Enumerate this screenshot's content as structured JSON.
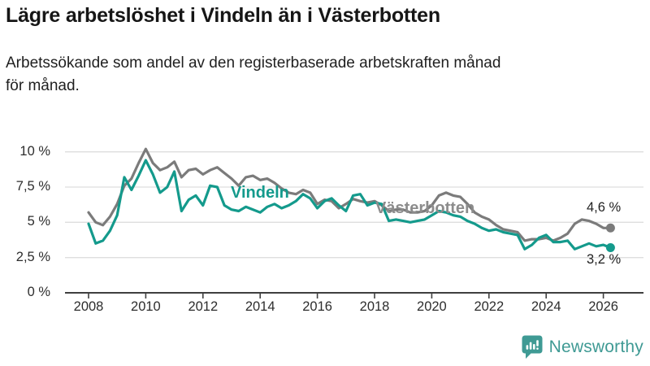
{
  "header": {
    "title": "Lägre arbetslöshet i Vindeln än i Västerbotten",
    "subtitle_line1": "Arbetssökande som andel av den registerbaserade arbetskraften månad",
    "subtitle_line2": "för månad."
  },
  "footer": {
    "brand": "Newsworthy",
    "brand_color": "#3f9a94"
  },
  "colors": {
    "background": "#ffffff",
    "gridline": "#dedede",
    "axis": "#3f3f3f",
    "tick_text": "#2d2d2d"
  },
  "chart_data": {
    "type": "line",
    "x_unit": "year (monthly series)",
    "x_start": 2008.0,
    "x_step": 0.25,
    "x_end": 2026.25,
    "y_axis": {
      "min": 0,
      "max": 10,
      "grid_values": [
        2.5,
        5,
        7.5,
        10
      ],
      "tick_values": [
        0,
        2.5,
        5,
        7.5,
        10
      ],
      "tick_labels": [
        "0 %",
        "2,5 %",
        "5 %",
        "7,5 %",
        "10 %"
      ]
    },
    "x_axis": {
      "tick_values": [
        2008,
        2010,
        2012,
        2014,
        2016,
        2018,
        2020,
        2022,
        2024,
        2026
      ],
      "tick_labels": [
        "2008",
        "2010",
        "2012",
        "2014",
        "2016",
        "2018",
        "2020",
        "2022",
        "2024",
        "2026"
      ]
    },
    "grid": true,
    "legend_position": "inline-labels",
    "series": [
      {
        "name": "Västerbotten",
        "color": "#7b7b7b",
        "label_color": "#8c8c8c",
        "end_label": "4,6 %",
        "end_value": 4.6,
        "values": [
          5.7,
          5.0,
          4.8,
          5.4,
          6.3,
          7.6,
          8.1,
          9.2,
          10.2,
          9.2,
          8.7,
          8.9,
          9.3,
          8.2,
          8.7,
          8.8,
          8.4,
          8.7,
          8.9,
          8.5,
          8.1,
          7.6,
          8.2,
          8.3,
          8.0,
          8.1,
          7.8,
          7.4,
          7.1,
          7.0,
          7.3,
          7.1,
          6.3,
          6.6,
          6.5,
          6.0,
          6.3,
          6.65,
          6.5,
          6.4,
          6.5,
          6.2,
          5.8,
          5.9,
          5.9,
          5.7,
          5.7,
          5.8,
          6.2,
          6.9,
          7.1,
          6.9,
          6.8,
          6.3,
          5.7,
          5.4,
          5.2,
          4.8,
          4.5,
          4.4,
          4.3,
          3.7,
          3.8,
          3.8,
          3.9,
          3.7,
          3.9,
          4.2,
          4.9,
          5.2,
          5.1,
          4.9,
          4.6,
          4.6
        ]
      },
      {
        "name": "Vindeln",
        "color": "#149a8c",
        "label_color": "#149a8c",
        "end_label": "3,2 %",
        "end_value": 3.2,
        "values": [
          4.9,
          3.5,
          3.7,
          4.4,
          5.5,
          8.2,
          7.3,
          8.3,
          9.4,
          8.4,
          7.1,
          7.5,
          8.6,
          5.8,
          6.6,
          6.9,
          6.2,
          7.6,
          7.5,
          6.2,
          5.9,
          5.8,
          6.1,
          5.9,
          5.7,
          6.1,
          6.3,
          6.0,
          6.2,
          6.5,
          7.0,
          6.7,
          6.0,
          6.5,
          6.7,
          6.2,
          5.8,
          6.9,
          7.0,
          6.2,
          6.4,
          6.3,
          5.1,
          5.2,
          5.1,
          5.0,
          5.1,
          5.2,
          5.5,
          5.8,
          5.7,
          5.5,
          5.4,
          5.1,
          4.9,
          4.6,
          4.4,
          4.5,
          4.3,
          4.2,
          4.1,
          3.1,
          3.4,
          3.9,
          4.1,
          3.6,
          3.6,
          3.7,
          3.1,
          3.3,
          3.5,
          3.3,
          3.4,
          3.2
        ]
      }
    ],
    "title": "Lägre arbetslöshet i Vindeln än i Västerbotten",
    "xlabel": "",
    "ylabel": "Arbetssökande som andel av den registerbaserade arbetskraften"
  }
}
